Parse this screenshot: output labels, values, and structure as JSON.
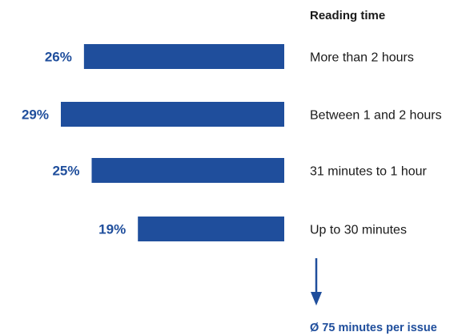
{
  "chart_data": {
    "type": "bar",
    "orientation": "horizontal",
    "title": "Reading time",
    "categories": [
      "More than 2 hours",
      "Between 1 and 2 hours",
      "31 minutes to 1 hour",
      "Up to 30 minutes"
    ],
    "values": [
      26,
      29,
      25,
      19
    ],
    "value_labels": [
      "26%",
      "29%",
      "25%",
      "19%"
    ],
    "unit": "%",
    "annotation": "Ø 75 minutes per issue",
    "grid": false,
    "legend": "none"
  },
  "colors": {
    "bar": "#1f4e9c",
    "value_label": "#1f4e9c",
    "text": "#1a1a1a",
    "arrow": "#1f4e9c"
  },
  "icons": {
    "arrow": "arrow-down-icon"
  }
}
